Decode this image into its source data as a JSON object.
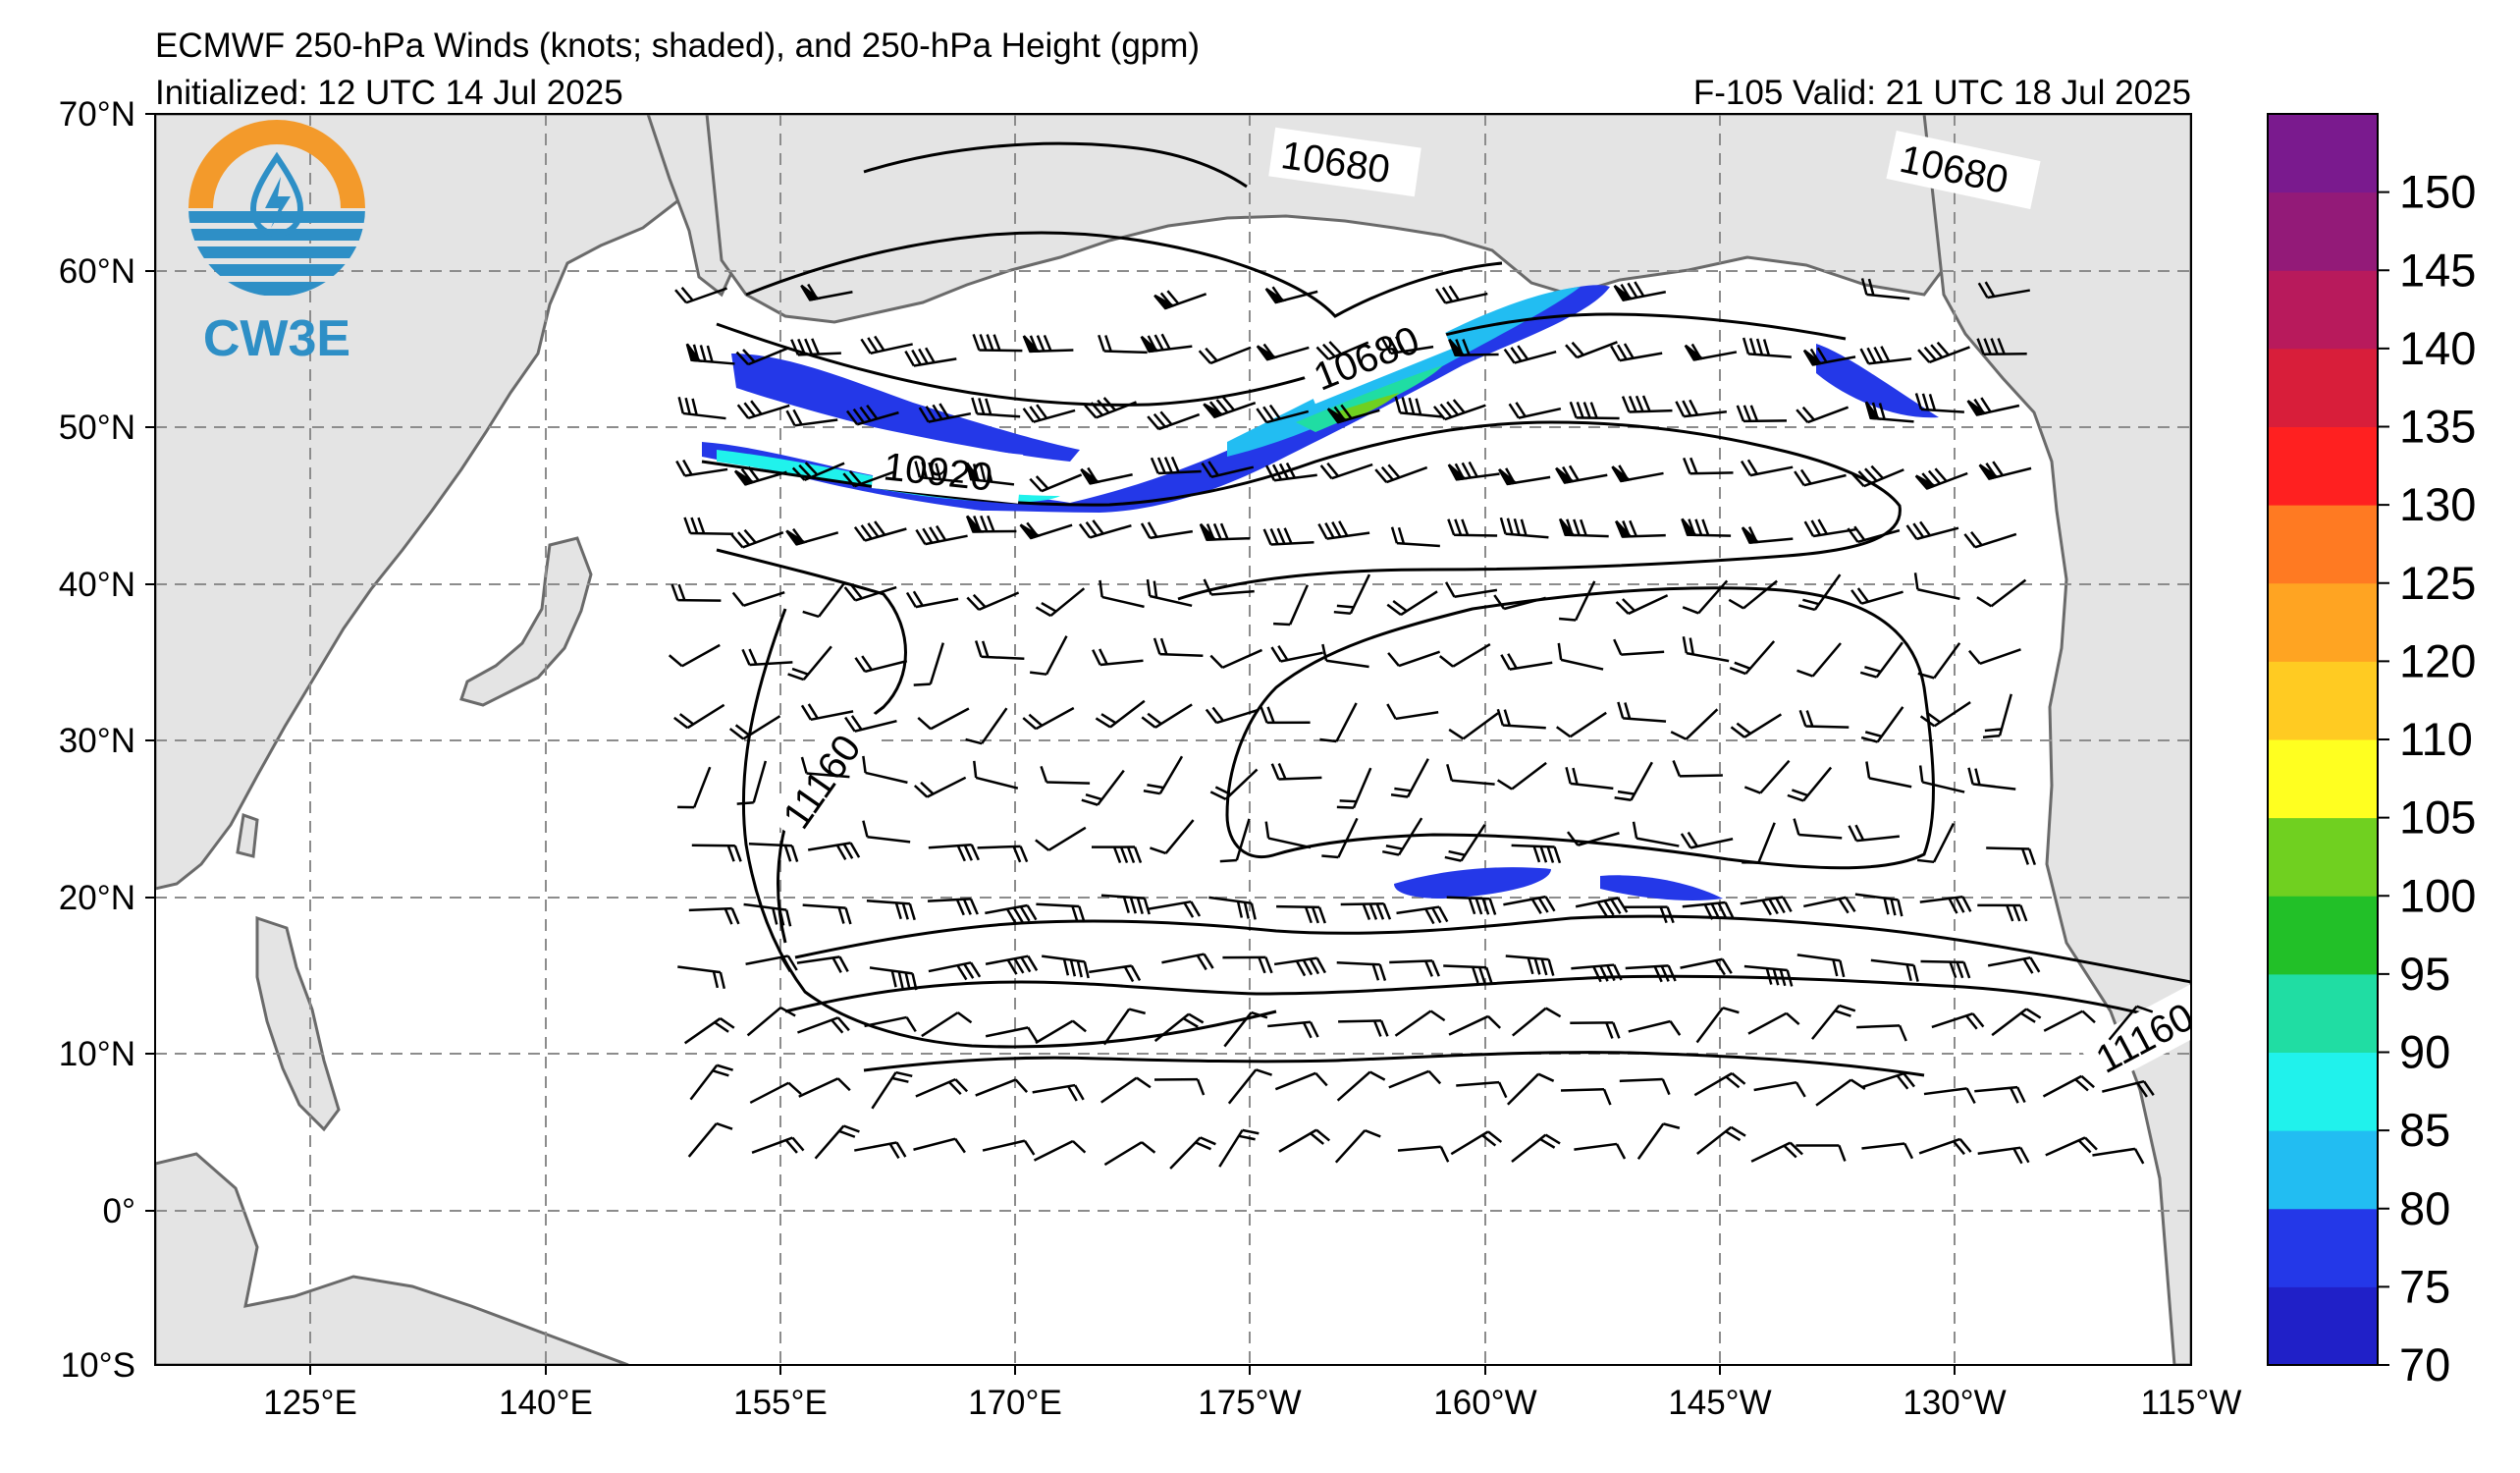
{
  "header": {
    "title_line": "ECMWF 250-hPa Winds (knots; shaded), and 250-hPa Height (gpm)",
    "initialized": "Initialized: 12 UTC 14 Jul 2025",
    "valid": "F-105  Valid: 21 UTC 18 Jul 2025"
  },
  "axes": {
    "lon_labels": [
      "125°E",
      "140°E",
      "155°E",
      "170°E",
      "175°W",
      "160°W",
      "145°W",
      "130°W",
      "115°W"
    ],
    "lat_labels": [
      "70°N",
      "60°N",
      "50°N",
      "40°N",
      "30°N",
      "20°N",
      "10°N",
      "0°",
      "10°S"
    ]
  },
  "colorbar": {
    "labels": [
      "70",
      "75",
      "80",
      "85",
      "90",
      "95",
      "100",
      "105",
      "110",
      "120",
      "125",
      "130",
      "135",
      "140",
      "145",
      "150"
    ],
    "colors": [
      "#2020c8",
      "#2438e8",
      "#22bdf2",
      "#20f2ec",
      "#20dda3",
      "#22c028",
      "#70d020",
      "#ffff20",
      "#ffcb22",
      "#ffa422",
      "#ff7a22",
      "#ff2020",
      "#d81e3a",
      "#b81a5c",
      "#931a78",
      "#7a1a8e"
    ]
  },
  "contours": {
    "labels": [
      "10680",
      "10680",
      "10680",
      "10920",
      "11160",
      "11160"
    ]
  },
  "logo": {
    "text": "CW3E",
    "icon": "cw3e-droplet-lightning-logo",
    "colors": {
      "orange": "#f39a2b",
      "blue": "#2e8fc6"
    }
  },
  "map": {
    "ocean_color": "#ffffff",
    "land_color": "#e4e4e4",
    "coast_color": "#6a6a6a",
    "grid_color": "#8c8c8c"
  }
}
